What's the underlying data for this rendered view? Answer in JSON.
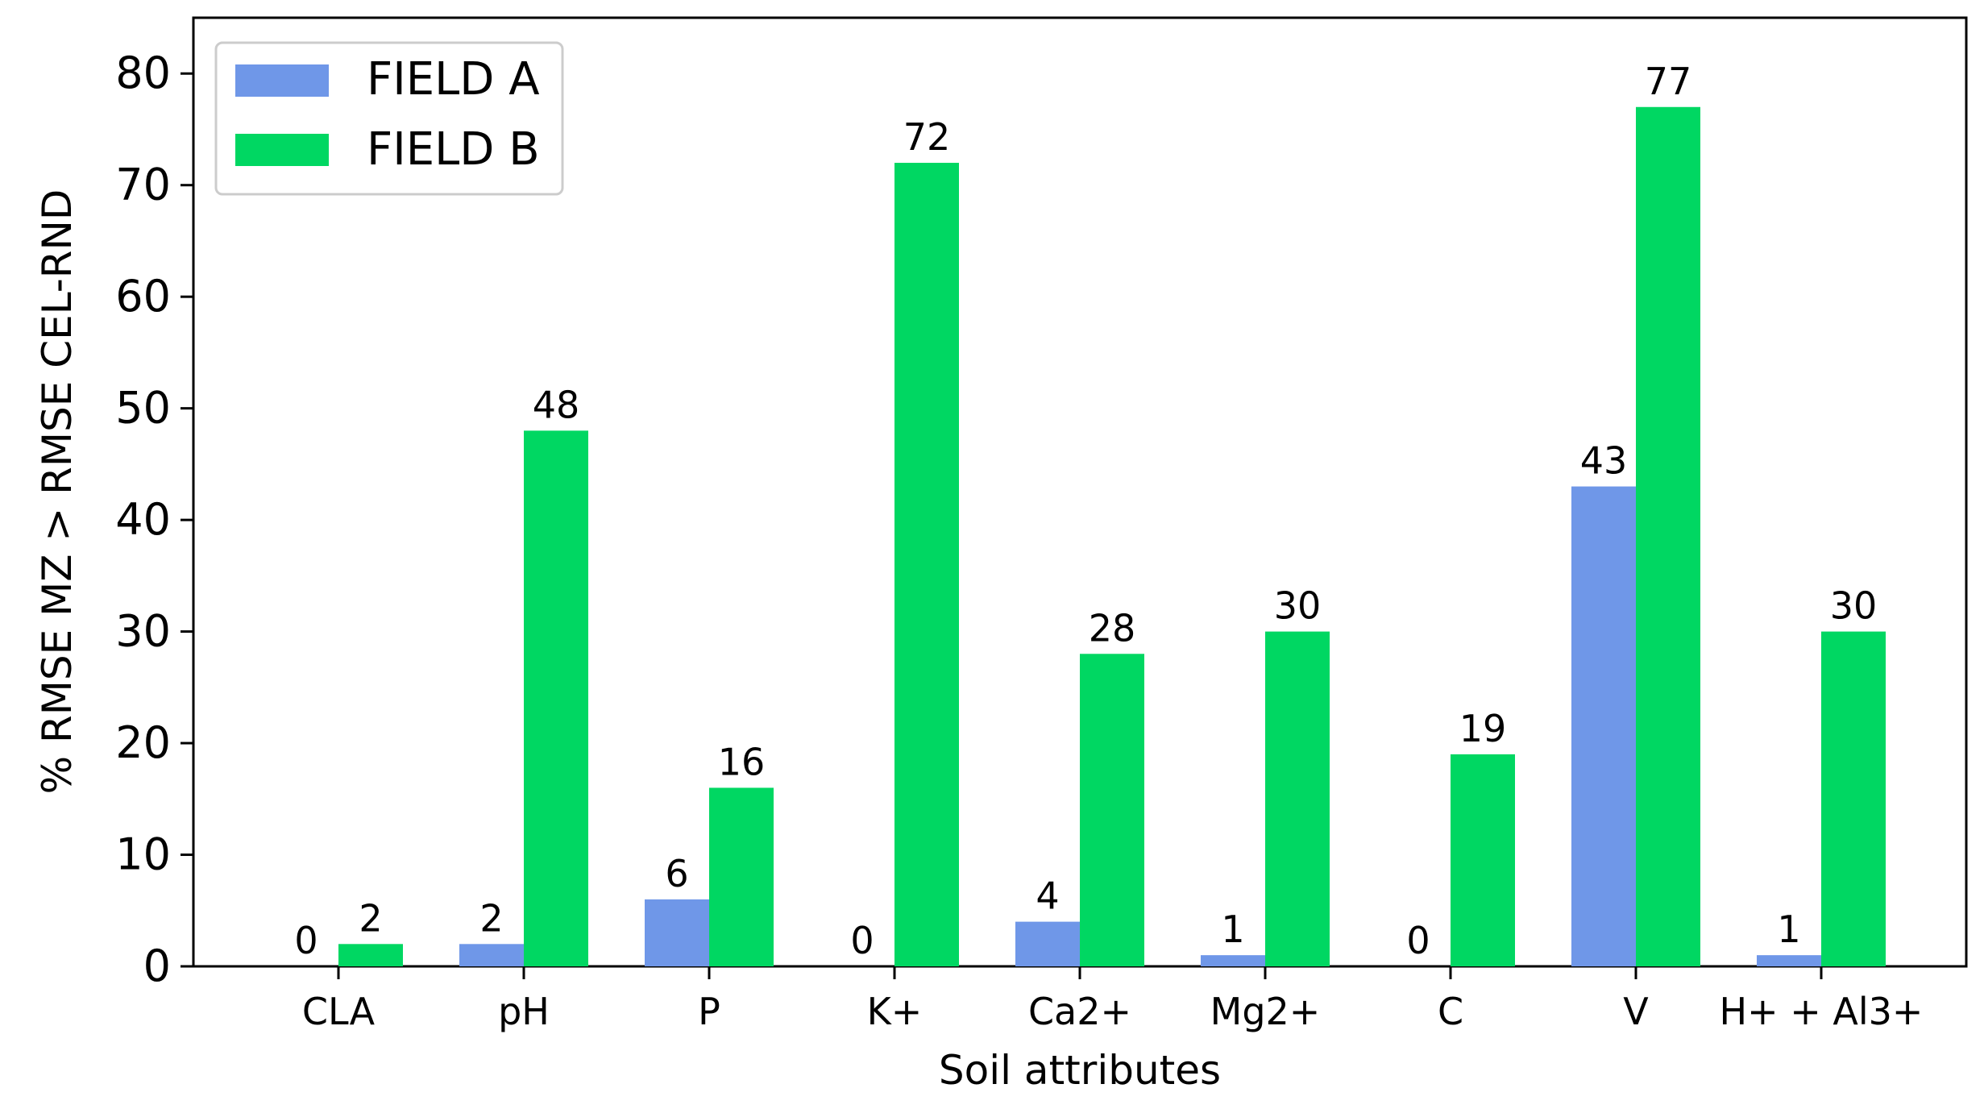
{
  "chart_data": {
    "type": "bar",
    "title": "",
    "xlabel": "Soil attributes",
    "ylabel": "% RMSE MZ  >  RMSE CEL-RND",
    "ylim": [
      0,
      85
    ],
    "yticks": [
      0,
      10,
      20,
      30,
      40,
      50,
      60,
      70,
      80
    ],
    "categories": [
      "CLA",
      "pH",
      "P",
      "K+",
      "Ca2+",
      "Mg2+",
      "C",
      "V",
      "H+ + Al3+"
    ],
    "series": [
      {
        "name": "FIELD A",
        "color": "#6f97e8",
        "values": [
          0,
          2,
          6,
          0,
          4,
          1,
          0,
          43,
          1
        ]
      },
      {
        "name": "FIELD B",
        "color": "#00d762",
        "values": [
          2,
          48,
          16,
          72,
          28,
          30,
          19,
          77,
          30
        ]
      }
    ],
    "legend_position": "top-left",
    "grid": false
  }
}
